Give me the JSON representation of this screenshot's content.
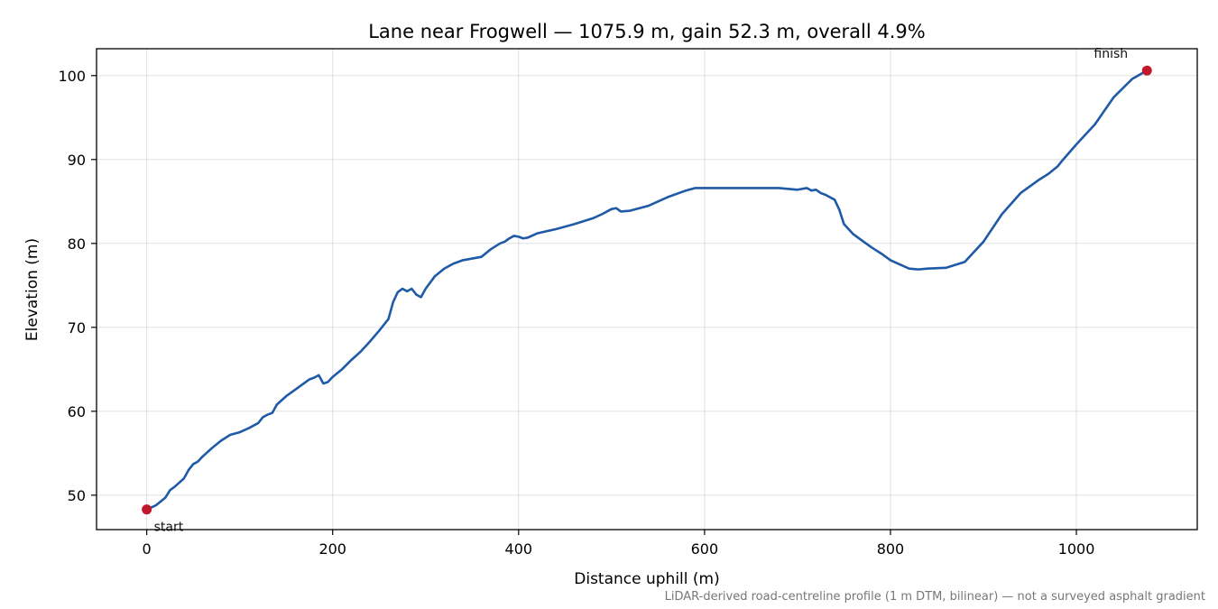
{
  "chart_data": {
    "type": "line",
    "title": "Lane near Frogwell — 1075.9 m, gain 52.3 m, overall 4.9%",
    "xlabel": "Distance uphill (m)",
    "ylabel": "Elevation (m)",
    "xlim": [
      -54,
      1130
    ],
    "ylim": [
      45.9,
      103.2
    ],
    "xticks": [
      0,
      200,
      400,
      600,
      800,
      1000
    ],
    "yticks": [
      50,
      60,
      70,
      80,
      90,
      100
    ],
    "grid": true,
    "line_color": "#1f5aa6",
    "marker_color": "#c0192c",
    "series": [
      {
        "x": [
          0,
          10,
          20,
          25,
          30,
          35,
          40,
          45,
          50,
          55,
          60,
          70,
          80,
          90,
          100,
          110,
          120,
          125,
          130,
          135,
          140,
          150,
          160,
          170,
          175,
          180,
          185,
          188,
          190,
          195,
          200,
          210,
          220,
          230,
          240,
          250,
          260,
          265,
          270,
          275,
          280,
          285,
          290,
          295,
          300,
          310,
          320,
          330,
          340,
          350,
          360,
          370,
          380,
          385,
          390,
          395,
          400,
          405,
          410,
          420,
          440,
          460,
          480,
          490,
          500,
          505,
          510,
          520,
          540,
          560,
          580,
          590,
          600,
          620,
          650,
          680,
          700,
          710,
          715,
          720,
          725,
          730,
          740,
          745,
          750,
          760,
          770,
          780,
          790,
          800,
          810,
          820,
          830,
          840,
          860,
          880,
          900,
          920,
          940,
          960,
          970,
          980,
          985,
          1000,
          1020,
          1040,
          1060,
          1075.9
        ],
        "y": [
          48.3,
          48.8,
          49.7,
          50.6,
          51.0,
          51.5,
          52.0,
          53.0,
          53.7,
          54.0,
          54.6,
          55.6,
          56.5,
          57.2,
          57.5,
          58.0,
          58.6,
          59.3,
          59.6,
          59.8,
          60.8,
          61.8,
          62.6,
          63.4,
          63.8,
          64.0,
          64.3,
          63.7,
          63.3,
          63.5,
          64.1,
          65.0,
          66.1,
          67.1,
          68.3,
          69.6,
          71.0,
          73.0,
          74.2,
          74.6,
          74.3,
          74.6,
          73.9,
          73.6,
          74.6,
          76.1,
          77.0,
          77.6,
          78.0,
          78.2,
          78.4,
          79.3,
          80.0,
          80.2,
          80.6,
          80.9,
          80.8,
          80.6,
          80.7,
          81.2,
          81.7,
          82.3,
          83.0,
          83.5,
          84.1,
          84.2,
          83.8,
          83.9,
          84.5,
          85.5,
          86.3,
          86.6,
          86.6,
          86.6,
          86.6,
          86.6,
          86.4,
          86.6,
          86.3,
          86.4,
          86.0,
          85.8,
          85.2,
          84.0,
          82.3,
          81.1,
          80.3,
          79.5,
          78.8,
          78.0,
          77.5,
          77.0,
          76.9,
          77.0,
          77.1,
          77.8,
          80.2,
          83.5,
          86.0,
          87.6,
          88.3,
          89.2,
          89.9,
          91.8,
          94.2,
          97.4,
          99.6,
          100.6
        ]
      }
    ],
    "annotations": {
      "start": {
        "label": "start",
        "x": 0,
        "y": 48.3
      },
      "finish": {
        "label": "finish",
        "x": 1075.9,
        "y": 100.6
      }
    },
    "footnote": "LiDAR-derived road-centreline profile (1 m DTM, bilinear) — not a surveyed asphalt gradient"
  }
}
